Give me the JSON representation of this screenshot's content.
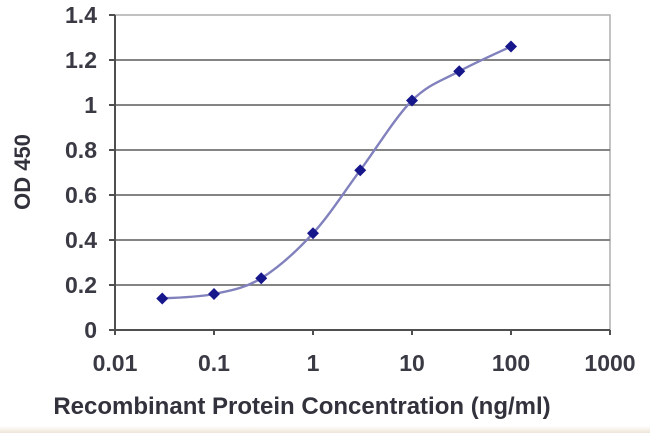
{
  "chart_data": {
    "type": "line",
    "title": "",
    "xlabel": "Recombinant Protein Concentration (ng/ml)",
    "ylabel": "OD 450",
    "x_scale": "log",
    "y_scale": "linear",
    "x": [
      0.03,
      0.1,
      0.3,
      1,
      3,
      10,
      30,
      100
    ],
    "y": [
      0.14,
      0.16,
      0.23,
      0.43,
      0.71,
      1.02,
      1.15,
      1.26
    ],
    "xlim": [
      0.01,
      1000
    ],
    "ylim": [
      0,
      1.4
    ],
    "x_tick_labels": [
      "0.01",
      "0.1",
      "1",
      "10",
      "100",
      "1000"
    ],
    "x_tick_values": [
      0.01,
      0.1,
      1,
      10,
      100,
      1000
    ],
    "y_tick_labels": [
      "0",
      "0.2",
      "0.4",
      "0.6",
      "0.8",
      "1",
      "1.2",
      "1.4"
    ],
    "y_tick_step": 0.2,
    "grid": true,
    "legend_position": "none",
    "marker_shape": "diamond",
    "line_smooth": true,
    "colors": {
      "line": "#8181bd",
      "marker": "#17178c",
      "gridline": "#737373",
      "axis": "#4f4f4f",
      "plot_border": "#b2b2b2",
      "tick_text": "#3a3a44",
      "axis_title_text": "#32323c",
      "background": "#ffffff"
    }
  }
}
